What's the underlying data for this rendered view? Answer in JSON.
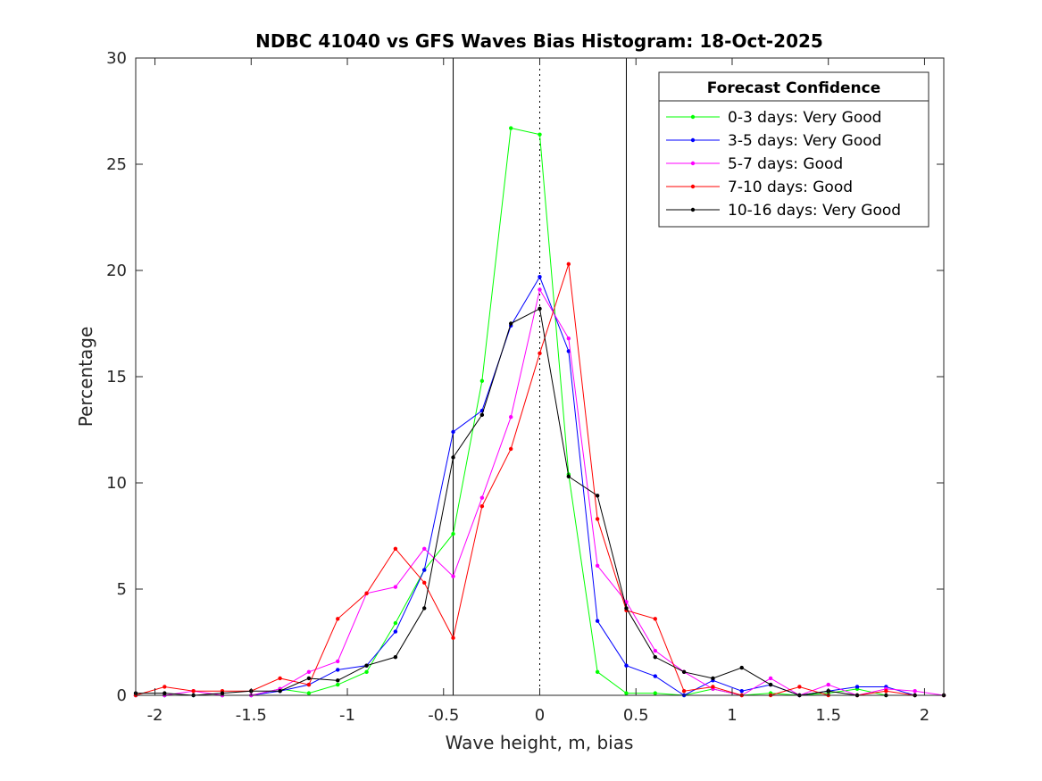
{
  "chart_data": {
    "type": "line",
    "title": "NDBC 41040 vs GFS Waves Bias Histogram: 18-Oct-2025",
    "xlabel": "Wave height, m, bias",
    "ylabel": "Percentage",
    "xlim": [
      -2.1,
      2.1
    ],
    "ylim": [
      0,
      30
    ],
    "xticks": [
      -2,
      -1.5,
      -1,
      -0.5,
      0,
      0.5,
      1,
      1.5,
      2
    ],
    "xtick_labels": [
      "-2",
      "-1.5",
      "-1",
      "-0.5",
      "0",
      "0.5",
      "1",
      "1.5",
      "2"
    ],
    "yticks": [
      0,
      5,
      10,
      15,
      20,
      25,
      30
    ],
    "ytick_labels": [
      "0",
      "5",
      "10",
      "15",
      "20",
      "25",
      "30"
    ],
    "vertical_lines": [
      {
        "x": -0.45,
        "style": "solid"
      },
      {
        "x": 0,
        "style": "dotted"
      },
      {
        "x": 0.45,
        "style": "solid"
      }
    ],
    "legend": {
      "title": "Forecast Confidence",
      "position": "top-right"
    },
    "x": [
      -2.1,
      -1.95,
      -1.8,
      -1.65,
      -1.5,
      -1.35,
      -1.2,
      -1.05,
      -0.9,
      -0.75,
      -0.6,
      -0.45,
      -0.3,
      -0.15,
      0,
      0.15,
      0.3,
      0.45,
      0.6,
      0.75,
      0.9,
      1.05,
      1.2,
      1.35,
      1.5,
      1.65,
      1.8,
      1.95,
      2.1
    ],
    "series": [
      {
        "name": "0-3 days: Very Good",
        "color": "#00ff00",
        "values": [
          0,
          0,
          0,
          0,
          0,
          0.3,
          0.1,
          0.5,
          1.1,
          3.4,
          5.9,
          7.6,
          14.8,
          26.7,
          26.4,
          10.4,
          1.1,
          0.1,
          0.1,
          0,
          0.3,
          0,
          0.1,
          0,
          0.1,
          0.3,
          0,
          0,
          0
        ]
      },
      {
        "name": "3-5 days: Very Good",
        "color": "#0000ff",
        "values": [
          0,
          0,
          0,
          0,
          0,
          0.2,
          0.5,
          1.2,
          1.4,
          3.0,
          5.9,
          12.4,
          13.4,
          17.4,
          19.7,
          16.2,
          3.5,
          1.4,
          0.9,
          0,
          0.7,
          0.2,
          0.5,
          0,
          0.2,
          0.4,
          0.4,
          0,
          0
        ]
      },
      {
        "name": "5-7 days: Good",
        "color": "#ff00ff",
        "values": [
          0,
          0,
          0.2,
          0,
          0,
          0.3,
          1.1,
          1.6,
          4.8,
          5.1,
          6.9,
          5.6,
          9.3,
          13.1,
          19.1,
          16.8,
          6.1,
          4.4,
          2.1,
          1.1,
          0.3,
          0,
          0.8,
          0,
          0.5,
          0,
          0.3,
          0.2,
          0
        ]
      },
      {
        "name": "7-10 days: Good",
        "color": "#ff0000",
        "values": [
          0,
          0.4,
          0.2,
          0.2,
          0.2,
          0.8,
          0.5,
          3.6,
          4.8,
          6.9,
          5.3,
          2.7,
          8.9,
          11.6,
          16.1,
          20.3,
          8.3,
          4.0,
          3.6,
          0.2,
          0.4,
          0,
          0,
          0.4,
          0,
          0,
          0.2,
          0,
          0
        ]
      },
      {
        "name": "10-16 days: Very Good",
        "color": "#000000",
        "values": [
          0.1,
          0.1,
          0,
          0.1,
          0.2,
          0.2,
          0.8,
          0.7,
          1.4,
          1.8,
          4.1,
          11.2,
          13.2,
          17.5,
          18.2,
          10.3,
          9.4,
          4.1,
          1.8,
          1.1,
          0.8,
          1.3,
          0.5,
          0,
          0.2,
          0,
          0,
          0,
          0
        ]
      }
    ]
  }
}
